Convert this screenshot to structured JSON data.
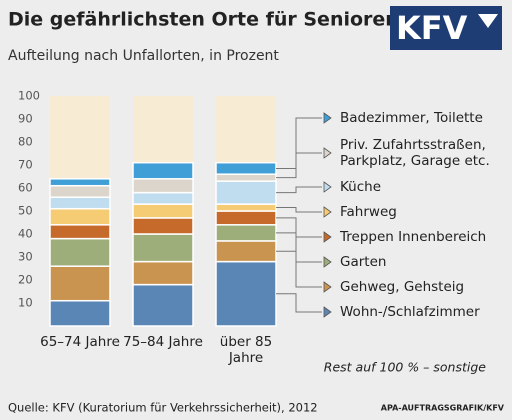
{
  "chart_data": {
    "type": "stacked_bar",
    "title": "Die gefährlichsten Orte für Senioren",
    "subtitle": "Aufteilung nach Unfallorten, in Prozent",
    "logo": "KFV",
    "categories": [
      "65–74 Jahre",
      "75–84 Jahre",
      "über 85 Jahre"
    ],
    "series": [
      {
        "name": "Wohn-/Schlafzimmer",
        "color": "#5a86b6",
        "values": [
          11,
          18,
          28
        ]
      },
      {
        "name": "Gehweg, Gehsteig",
        "color": "#c99350",
        "values": [
          15,
          10,
          9
        ]
      },
      {
        "name": "Garten",
        "color": "#9dae7a",
        "values": [
          12,
          12,
          7
        ]
      },
      {
        "name": "Treppen Innenbereich",
        "color": "#c66a2c",
        "values": [
          6,
          7,
          6
        ]
      },
      {
        "name": "Fahrweg",
        "color": "#f5cc74",
        "values": [
          7,
          6,
          3
        ]
      },
      {
        "name": "Küche",
        "color": "#c0dcef",
        "values": [
          5,
          5,
          10
        ]
      },
      {
        "name": "Priv. Zufahrtsstraßen, Parkplatz, Garage etc.",
        "color": "#dcd5cb",
        "values": [
          5,
          6,
          3
        ]
      },
      {
        "name": "Badezimmer, Toilette",
        "color": "#3f9fd6",
        "values": [
          3,
          7,
          5
        ]
      }
    ],
    "ylim": [
      0,
      100
    ],
    "yticks": [
      10,
      20,
      30,
      40,
      50,
      60,
      70,
      80,
      90,
      100
    ],
    "note": "Rest auf 100 % – sonstige",
    "source": "Quelle: KFV (Kuratorium für Verkehrssicherheit), 2012",
    "credit": "APA-AUFTRAGSGRAFIK/KFV"
  }
}
